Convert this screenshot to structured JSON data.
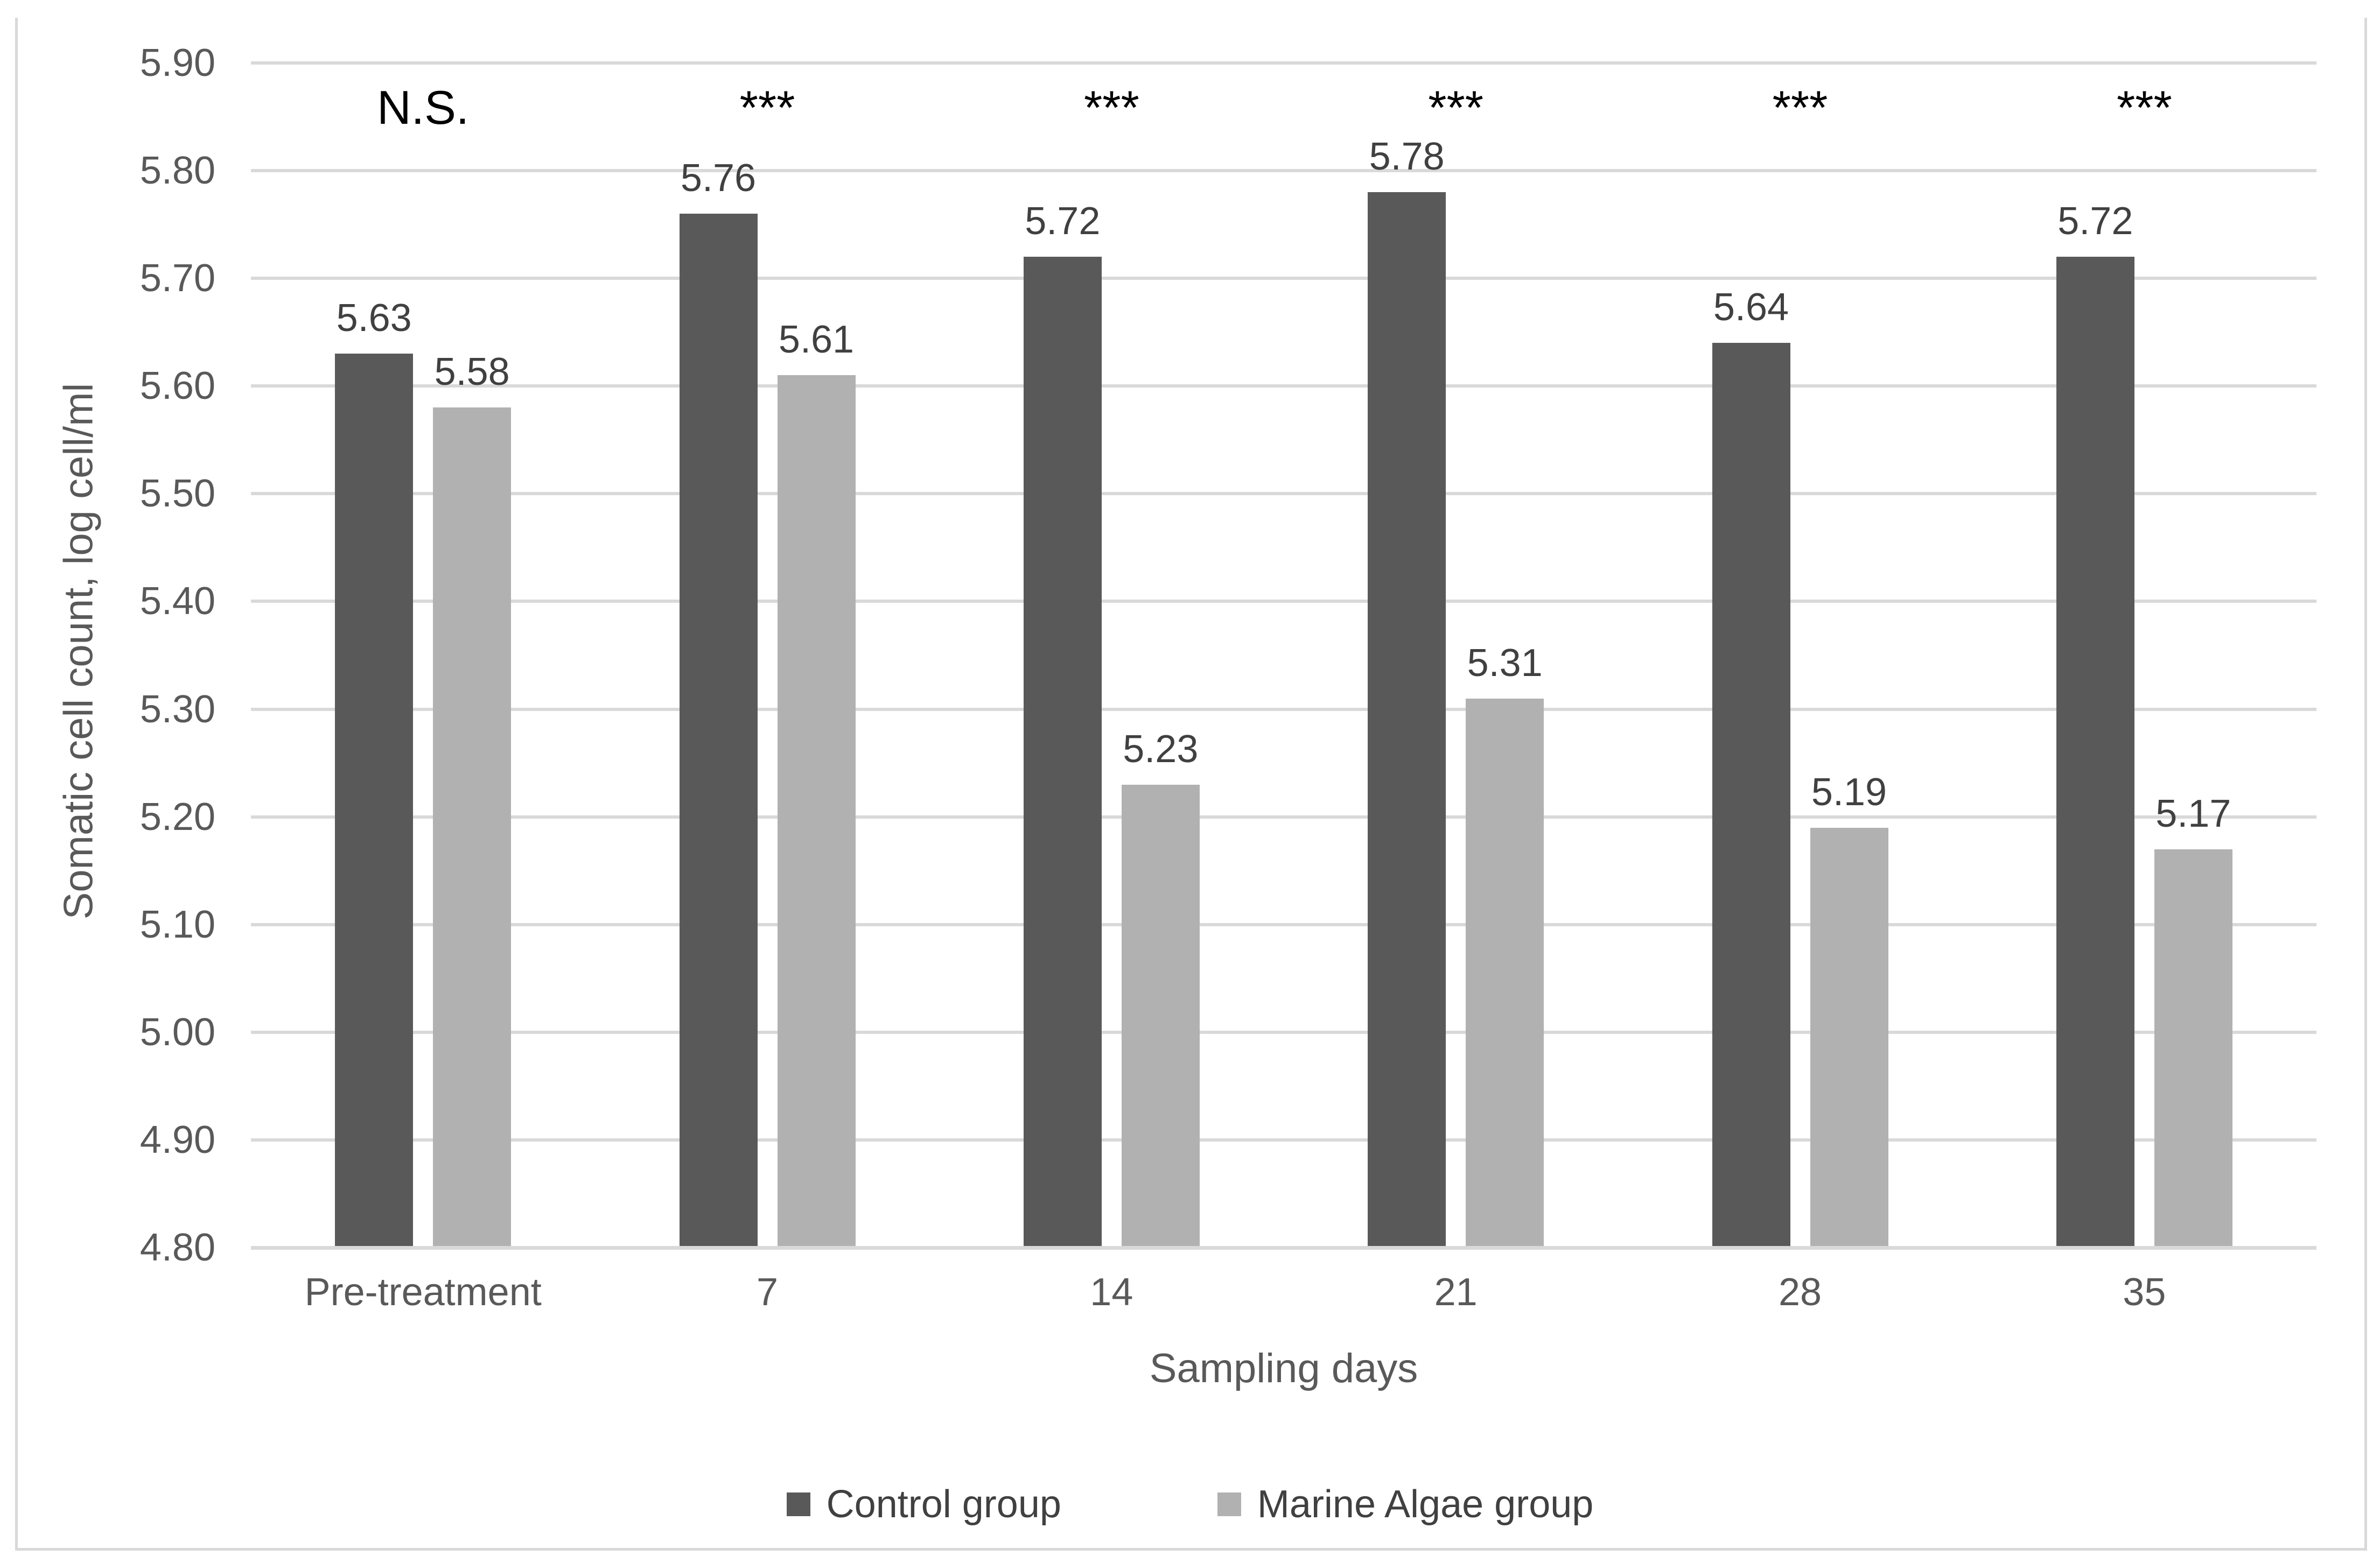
{
  "chart_data": {
    "type": "bar",
    "title": "",
    "categories": [
      "Pre-treatment",
      "7",
      "14",
      "21",
      "28",
      "35"
    ],
    "series": [
      {
        "name": "Control group",
        "color": "#595959",
        "values": [
          5.63,
          5.76,
          5.72,
          5.78,
          5.64,
          5.72
        ]
      },
      {
        "name": "Marine Algae group",
        "color": "#b1b1b1",
        "values": [
          5.58,
          5.61,
          5.23,
          5.31,
          5.19,
          5.17
        ]
      }
    ],
    "significance_labels": [
      "N.S.",
      "***",
      "***",
      "***",
      "***",
      "***"
    ],
    "xlabel": "Sampling days",
    "ylabel": "Somatic cell count, log cell/ml",
    "ylim": [
      4.8,
      5.9
    ],
    "ytick_step": 0.1,
    "yticks": [
      "4.80",
      "4.90",
      "5.00",
      "5.10",
      "5.20",
      "5.30",
      "5.40",
      "5.50",
      "5.60",
      "5.70",
      "5.80",
      "5.90"
    ],
    "grid": true,
    "legend_position": "bottom"
  },
  "colors": {
    "background": "#ffffff",
    "figure_border": "#d9d9d9",
    "gridline": "#d9d9d9",
    "axis_line": "#d9d9d9",
    "tick_text": "#595959",
    "axis_title_text": "#595959",
    "value_label_text": "#404040",
    "significance_text": "#000000",
    "legend_text": "#404040"
  }
}
